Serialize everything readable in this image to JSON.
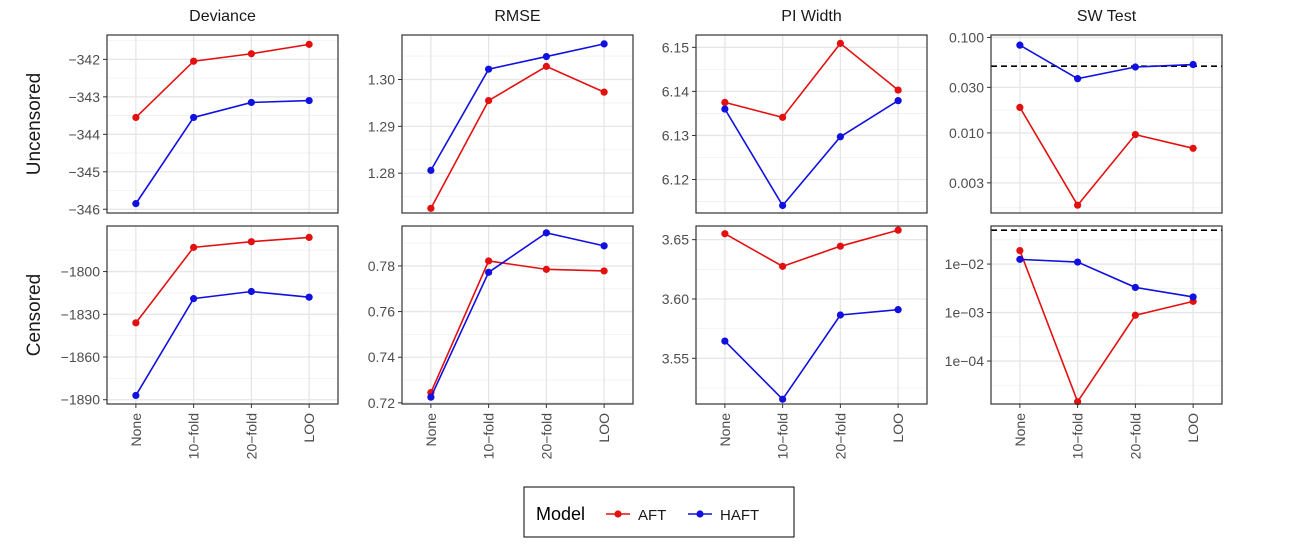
{
  "facets": {
    "columns": [
      "Deviance",
      "RMSE",
      "PI Width",
      "SW Test"
    ],
    "rows": [
      "Uncensored",
      "Censored"
    ]
  },
  "legend": {
    "title": "Model",
    "entries": [
      {
        "label": "AFT",
        "color": "#e41010"
      },
      {
        "label": "HAFT",
        "color": "#1010e0"
      }
    ],
    "placement": "bottom"
  },
  "chart_data": {
    "type": "line",
    "categories": [
      "None",
      "10−fold",
      "20−fold",
      "LOO"
    ],
    "grid": true,
    "reference_line_style": "dashed black",
    "panels": [
      {
        "column": "Deviance",
        "row": "Uncensored",
        "ylim": [
          -346.1,
          -341.35
        ],
        "ticks": [
          {
            "v": -342,
            "label": "−342"
          },
          {
            "v": -343,
            "label": "−343"
          },
          {
            "v": -344,
            "label": "−344"
          },
          {
            "v": -345,
            "label": "−345"
          },
          {
            "v": -346,
            "label": "−346"
          }
        ],
        "series": [
          {
            "name": "AFT",
            "values": [
              -343.55,
              -342.05,
              -341.85,
              -341.6
            ]
          },
          {
            "name": "HAFT",
            "values": [
              -345.85,
              -343.55,
              -343.15,
              -343.1
            ]
          }
        ]
      },
      {
        "column": "RMSE",
        "row": "Uncensored",
        "ylim": [
          1.2715,
          1.3095
        ],
        "ticks": [
          {
            "v": 1.3,
            "label": "1.30"
          },
          {
            "v": 1.29,
            "label": "1.29"
          },
          {
            "v": 1.28,
            "label": "1.28"
          }
        ],
        "series": [
          {
            "name": "AFT",
            "values": [
              1.2725,
              1.2955,
              1.3028,
              1.2973
            ]
          },
          {
            "name": "HAFT",
            "values": [
              1.2806,
              1.3022,
              1.3049,
              1.3076
            ]
          }
        ]
      },
      {
        "column": "PI Width",
        "row": "Uncensored",
        "ylim": [
          6.1124,
          6.1528
        ],
        "ticks": [
          {
            "v": 6.15,
            "label": "6.15"
          },
          {
            "v": 6.14,
            "label": "6.14"
          },
          {
            "v": 6.13,
            "label": "6.13"
          },
          {
            "v": 6.12,
            "label": "6.12"
          }
        ],
        "series": [
          {
            "name": "AFT",
            "values": [
              6.1375,
              6.1341,
              6.1509,
              6.1403
            ]
          },
          {
            "name": "HAFT",
            "values": [
              6.136,
              6.1141,
              6.1297,
              6.1379
            ]
          }
        ]
      },
      {
        "column": "SW Test",
        "row": "Uncensored",
        "scale": "log",
        "ylim": [
          0.00145,
          0.106
        ],
        "ticks": [
          {
            "v": 0.1,
            "label": "0.100"
          },
          {
            "v": 0.03,
            "label": "0.030"
          },
          {
            "v": 0.01,
            "label": "0.010"
          },
          {
            "v": 0.003,
            "label": "0.003"
          }
        ],
        "reference_line": 0.05,
        "series": [
          {
            "name": "AFT",
            "values": [
              0.0185,
              0.00175,
              0.0096,
              0.0069
            ]
          },
          {
            "name": "HAFT",
            "values": [
              0.083,
              0.037,
              0.049,
              0.052
            ]
          }
        ]
      },
      {
        "column": "Deviance",
        "row": "Censored",
        "ylim": [
          -1893,
          -1768
        ],
        "ticks": [
          {
            "v": -1800,
            "label": "−1800"
          },
          {
            "v": -1830,
            "label": "−1830"
          },
          {
            "v": -1860,
            "label": "−1860"
          },
          {
            "v": -1890,
            "label": "−1890"
          }
        ],
        "series": [
          {
            "name": "AFT",
            "values": [
              -1836,
              -1783,
              -1779,
              -1776
            ]
          },
          {
            "name": "HAFT",
            "values": [
              -1887,
              -1819,
              -1814,
              -1818
            ]
          }
        ]
      },
      {
        "column": "RMSE",
        "row": "Censored",
        "ylim": [
          0.7195,
          0.7975
        ],
        "ticks": [
          {
            "v": 0.78,
            "label": "0.78"
          },
          {
            "v": 0.76,
            "label": "0.76"
          },
          {
            "v": 0.74,
            "label": "0.74"
          },
          {
            "v": 0.72,
            "label": "0.72"
          }
        ],
        "series": [
          {
            "name": "AFT",
            "values": [
              0.7245,
              0.7822,
              0.7785,
              0.7778
            ]
          },
          {
            "name": "HAFT",
            "values": [
              0.7225,
              0.7772,
              0.7945,
              0.7888
            ]
          }
        ]
      },
      {
        "column": "PI Width",
        "row": "Censored",
        "ylim": [
          3.5115,
          3.6615
        ],
        "ticks": [
          {
            "v": 3.65,
            "label": "3.65"
          },
          {
            "v": 3.6,
            "label": "3.60"
          },
          {
            "v": 3.55,
            "label": "3.55"
          }
        ],
        "series": [
          {
            "name": "AFT",
            "values": [
              3.655,
              3.6275,
              3.6445,
              3.658
            ]
          },
          {
            "name": "HAFT",
            "values": [
              3.5645,
              3.5155,
              3.5865,
              3.591
            ]
          }
        ]
      },
      {
        "column": "SW Test",
        "row": "Censored",
        "scale": "log",
        "ylim": [
          1.3e-05,
          0.061
        ],
        "ticks": [
          {
            "v": 0.01,
            "label": "1e−02"
          },
          {
            "v": 0.001,
            "label": "1e−03"
          },
          {
            "v": 0.0001,
            "label": "1e−04"
          }
        ],
        "reference_line": 0.05,
        "series": [
          {
            "name": "AFT",
            "values": [
              0.019,
              1.45e-05,
              0.00088,
              0.0017
            ]
          },
          {
            "name": "HAFT",
            "values": [
              0.0125,
              0.011,
              0.0033,
              0.0021
            ]
          }
        ]
      }
    ]
  }
}
